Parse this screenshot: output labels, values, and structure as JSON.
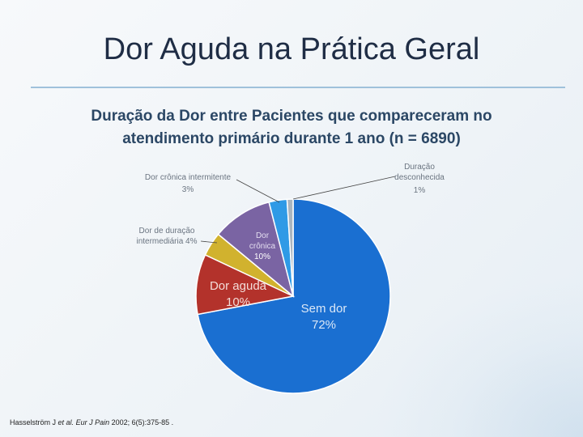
{
  "slide": {
    "title": "Dor Aguda na Prática Geral"
  },
  "citation": {
    "author": "Hasselström J",
    "etal": "et al.",
    "journal": "Eur J Pain",
    "rest": "2002; 6(5):375-85 ."
  },
  "chart_data": {
    "type": "pie",
    "title_line1": "Duração da Dor entre Pacientes que compareceram no",
    "title_line2": "atendimento primário durante 1 ano (n = 6890)",
    "slices": [
      {
        "name": "Sem dor",
        "value": 72,
        "label": "72%",
        "color": "#1a6fd1"
      },
      {
        "name": "Dor aguda",
        "value": 10,
        "label": "10%",
        "color": "#b3322b"
      },
      {
        "name": "Dor de duração intermediária",
        "value": 4,
        "label": "4%",
        "color": "#d1b22e"
      },
      {
        "name": "Dor crônica",
        "value": 10,
        "label": "10%",
        "color": "#7a64a3"
      },
      {
        "name": "Dor crônica intermitente",
        "value": 3,
        "label": "3%",
        "color": "#2f9ae6"
      },
      {
        "name": "Duração desconhecida",
        "value": 1,
        "label": "1%",
        "color": "#a9b4bf"
      }
    ],
    "labels": {
      "sem_dor_name": "Sem dor",
      "sem_dor_pct": "72%",
      "aguda_name": "Dor aguda",
      "aguda_pct": "10%",
      "intermed_line1": "Dor de duração",
      "intermed_line2": "intermediária 4%",
      "cronica_line1": "Dor",
      "cronica_line2": "crônica",
      "cronica_pct": "10%",
      "intermit_name": "Dor crônica intermitente",
      "intermit_pct": "3%",
      "desconhecida_line1": "Duração",
      "desconhecida_line2": "desconhecida",
      "desconhecida_pct": "1%"
    }
  }
}
